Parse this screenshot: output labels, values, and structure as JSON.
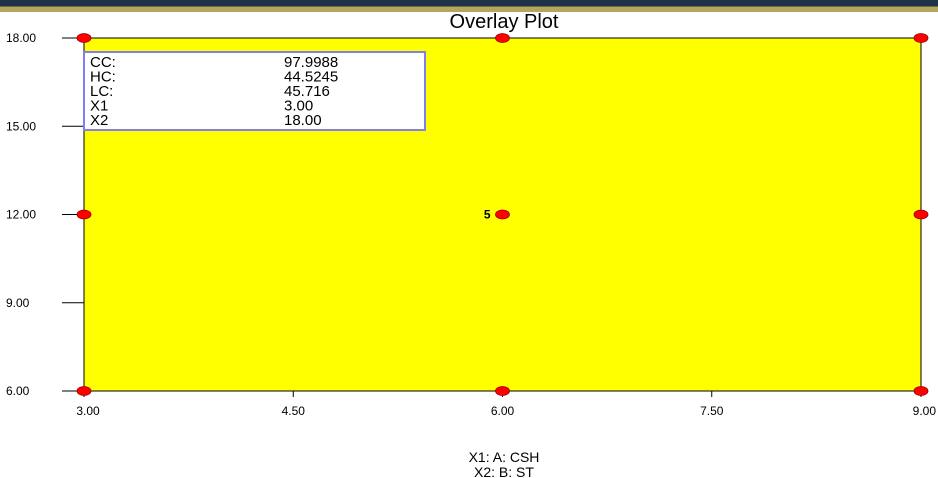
{
  "chart_data": {
    "type": "scatter",
    "title": "Overlay Plot",
    "xlabel_lines": [
      "X1: A: CSH",
      "X2: B: ST"
    ],
    "xlim": [
      3,
      9
    ],
    "ylim": [
      6,
      18
    ],
    "x_ticks": [
      "3.00",
      "4.50",
      "6.00",
      "7.50",
      "9.00"
    ],
    "x_tick_values": [
      3,
      4.5,
      6,
      7.5,
      9
    ],
    "y_ticks": [
      "6.00",
      "9.00",
      "12.00",
      "15.00",
      "18.00"
    ],
    "y_tick_values": [
      6,
      9,
      12,
      15,
      18
    ],
    "region_color": "#ffff00",
    "point_color": "#ff0000",
    "points": [
      {
        "x": 3,
        "y": 18,
        "label": ""
      },
      {
        "x": 6,
        "y": 18,
        "label": ""
      },
      {
        "x": 9,
        "y": 18,
        "label": ""
      },
      {
        "x": 3,
        "y": 12,
        "label": ""
      },
      {
        "x": 6,
        "y": 12,
        "label": "5"
      },
      {
        "x": 9,
        "y": 12,
        "label": ""
      },
      {
        "x": 3,
        "y": 6,
        "label": ""
      },
      {
        "x": 6,
        "y": 6,
        "label": ""
      },
      {
        "x": 9,
        "y": 6,
        "label": ""
      }
    ],
    "info_box": {
      "rows": [
        {
          "label": "CC:",
          "value": "97.9988"
        },
        {
          "label": "HC:",
          "value": "44.5245"
        },
        {
          "label": "LC:",
          "value": "45.716"
        },
        {
          "label": "X1",
          "value": "3.00"
        },
        {
          "label": "X2",
          "value": "18.00"
        }
      ],
      "border_color": "#7f7ff0"
    }
  }
}
